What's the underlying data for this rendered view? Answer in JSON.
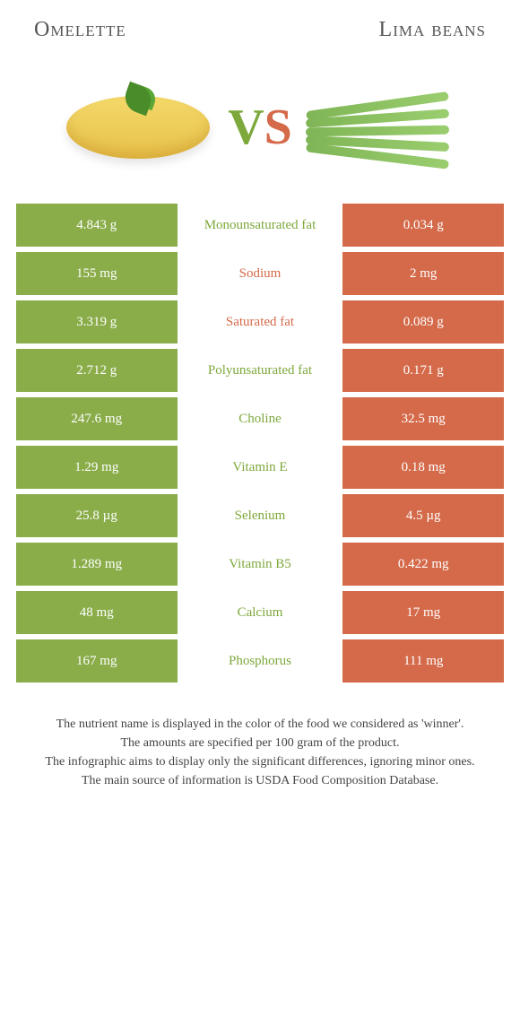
{
  "colors": {
    "left_color": "#8aad4a",
    "right_color": "#d46a4a",
    "left_text_winner": "#7da83b",
    "right_text_winner": "#d46a4a",
    "title_color": "#555555",
    "footer_color": "#444444",
    "bg": "#ffffff"
  },
  "typography": {
    "title_fontsize": 24,
    "vs_fontsize": 56,
    "cell_fontsize": 15,
    "footer_fontsize": 14
  },
  "header": {
    "left_food": "Omelette",
    "right_food": "Lima beans",
    "vs_v": "V",
    "vs_s": "S"
  },
  "table": {
    "columns": [
      "left_value",
      "nutrient",
      "right_value"
    ],
    "rows": [
      {
        "left": "4.843 g",
        "label": "Monounsaturated fat",
        "right": "0.034 g",
        "winner": "left"
      },
      {
        "left": "155 mg",
        "label": "Sodium",
        "right": "2 mg",
        "winner": "right"
      },
      {
        "left": "3.319 g",
        "label": "Saturated fat",
        "right": "0.089 g",
        "winner": "right"
      },
      {
        "left": "2.712 g",
        "label": "Polyunsaturated fat",
        "right": "0.171 g",
        "winner": "left"
      },
      {
        "left": "247.6 mg",
        "label": "Choline",
        "right": "32.5 mg",
        "winner": "left"
      },
      {
        "left": "1.29 mg",
        "label": "Vitamin E",
        "right": "0.18 mg",
        "winner": "left"
      },
      {
        "left": "25.8 µg",
        "label": "Selenium",
        "right": "4.5 µg",
        "winner": "left"
      },
      {
        "left": "1.289 mg",
        "label": "Vitamin B5",
        "right": "0.422 mg",
        "winner": "left"
      },
      {
        "left": "48 mg",
        "label": "Calcium",
        "right": "17 mg",
        "winner": "left"
      },
      {
        "left": "167 mg",
        "label": "Phosphorus",
        "right": "111 mg",
        "winner": "left"
      }
    ]
  },
  "footer": {
    "line1": "The nutrient name is displayed in the color of the food we considered as 'winner'.",
    "line2": "The amounts are specified per 100 gram of the product.",
    "line3": "The infographic aims to display only the significant differences, ignoring minor ones.",
    "line4": "The main source of information is USDA Food Composition Database."
  }
}
